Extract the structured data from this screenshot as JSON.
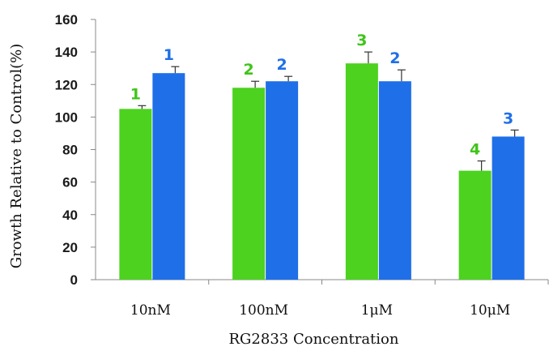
{
  "chart_data": {
    "type": "bar",
    "categories": [
      "10nM",
      "100nM",
      "1μM",
      "10μM"
    ],
    "series": [
      {
        "values": [
          105,
          118,
          133,
          67
        ],
        "errors": [
          2,
          4,
          7,
          6
        ],
        "labels": [
          "1",
          "2",
          "3",
          "4"
        ],
        "color": "#4cd21f",
        "label_color": "#3fc51a"
      },
      {
        "values": [
          127,
          122,
          122,
          88
        ],
        "errors": [
          4,
          3,
          7,
          4
        ],
        "labels": [
          "1",
          "2",
          "2",
          "3"
        ],
        "color": "#1f6fe8",
        "label_color": "#1f6fe8"
      }
    ],
    "title": "",
    "xlabel": "RG2833 Concentration",
    "ylabel": "Growth Relative to Control(%)",
    "ylim": [
      0,
      160
    ],
    "yticks": [
      "0",
      "20",
      "40",
      "60",
      "80",
      "100",
      "120",
      "140",
      "160"
    ],
    "grid": false,
    "legend": "none"
  }
}
